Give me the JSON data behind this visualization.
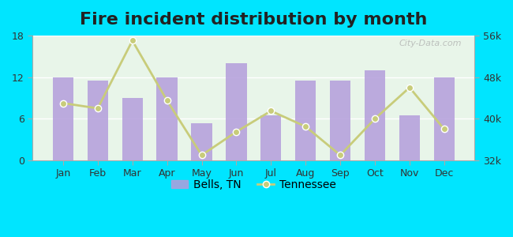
{
  "title": "Fire incident distribution by month",
  "months": [
    "Jan",
    "Feb",
    "Mar",
    "Apr",
    "May",
    "Jun",
    "Jul",
    "Aug",
    "Sep",
    "Oct",
    "Nov",
    "Dec"
  ],
  "bells_tn": [
    12,
    11.5,
    9,
    12,
    5.3,
    14,
    6.5,
    11.5,
    11.5,
    13,
    6.5,
    12
  ],
  "tennessee": [
    43000,
    42000,
    55000,
    43500,
    33000,
    37500,
    41500,
    38500,
    33000,
    40000,
    46000,
    38000
  ],
  "bar_color": "#b39ddb",
  "line_color": "#c8cc7a",
  "bg_color_top": "#e8f5e9",
  "bg_color_bottom": "#f0faf0",
  "plot_bg": "#e8f5e9",
  "outer_bg": "#00e5ff",
  "ylim_left": [
    0,
    18
  ],
  "ylim_right": [
    32000,
    56000
  ],
  "yticks_left": [
    0,
    6,
    12,
    18
  ],
  "yticks_right": [
    32000,
    40000,
    48000,
    56000
  ],
  "ytick_labels_right": [
    "32k",
    "40k",
    "48k",
    "56k"
  ],
  "legend_bells": "Bells, TN",
  "legend_tennessee": "Tennessee",
  "title_fontsize": 16,
  "watermark": "City-Data.com"
}
